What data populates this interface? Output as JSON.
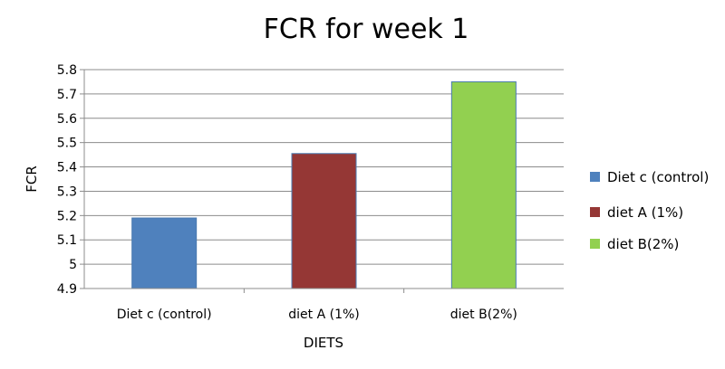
{
  "chart_data": {
    "type": "bar",
    "title": "FCR for week 1",
    "xlabel": "DIETS",
    "ylabel": "FCR",
    "categories": [
      "Diet c (control)",
      "diet A (1%)",
      "diet B(2%)"
    ],
    "values": [
      5.19,
      5.455,
      5.75
    ],
    "colors": [
      "#4f81bd",
      "#953735",
      "#92d050"
    ],
    "yticks": [
      "4.9",
      "5",
      "5.1",
      "5.2",
      "5.3",
      "5.4",
      "5.5",
      "5.6",
      "5.7",
      "5.8"
    ],
    "ylim": [
      4.9,
      5.8
    ],
    "grid": true,
    "legend": {
      "position": "right",
      "entries": [
        "Diet c (control)",
        "diet A (1%)",
        "diet B(2%)"
      ]
    }
  }
}
